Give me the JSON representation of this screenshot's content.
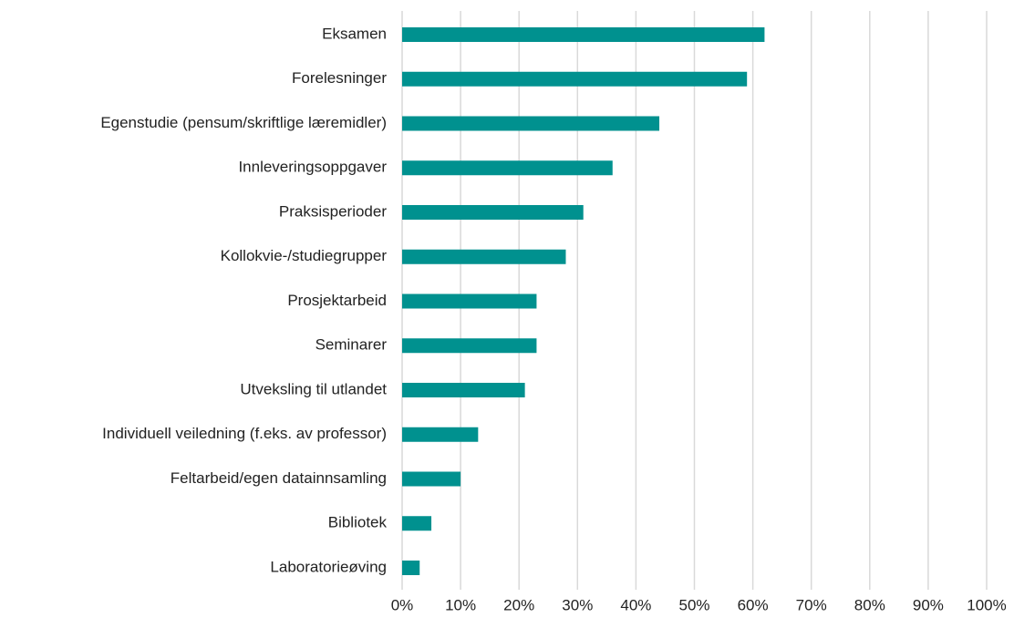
{
  "chart_data": {
    "type": "barh",
    "categories": [
      "Eksamen",
      "Forelesninger",
      "Egenstudie (pensum/skriftlige læremidler)",
      "Innleveringsoppgaver",
      "Praksisperioder",
      "Kollokvie-/studiegrupper",
      "Prosjektarbeid",
      "Seminarer",
      "Utveksling til utlandet",
      "Individuell veiledning (f.eks. av professor)",
      "Feltarbeid/egen datainnsamling",
      "Bibliotek",
      "Laboratorieøving"
    ],
    "values": [
      62,
      59,
      44,
      36,
      31,
      28,
      23,
      23,
      21,
      13,
      10,
      5,
      3
    ],
    "color": "#00918f",
    "xlim": [
      0,
      100
    ],
    "xticks": [
      {
        "value": 0,
        "label": "0%"
      },
      {
        "value": 10,
        "label": "10%"
      },
      {
        "value": 20,
        "label": "20%"
      },
      {
        "value": 30,
        "label": "30%"
      },
      {
        "value": 40,
        "label": "40%"
      },
      {
        "value": 50,
        "label": "50%"
      },
      {
        "value": 60,
        "label": "60%"
      },
      {
        "value": 70,
        "label": "70%"
      },
      {
        "value": 80,
        "label": "80%"
      },
      {
        "value": 90,
        "label": "90%"
      },
      {
        "value": 100,
        "label": "100%"
      }
    ],
    "grid": true
  }
}
